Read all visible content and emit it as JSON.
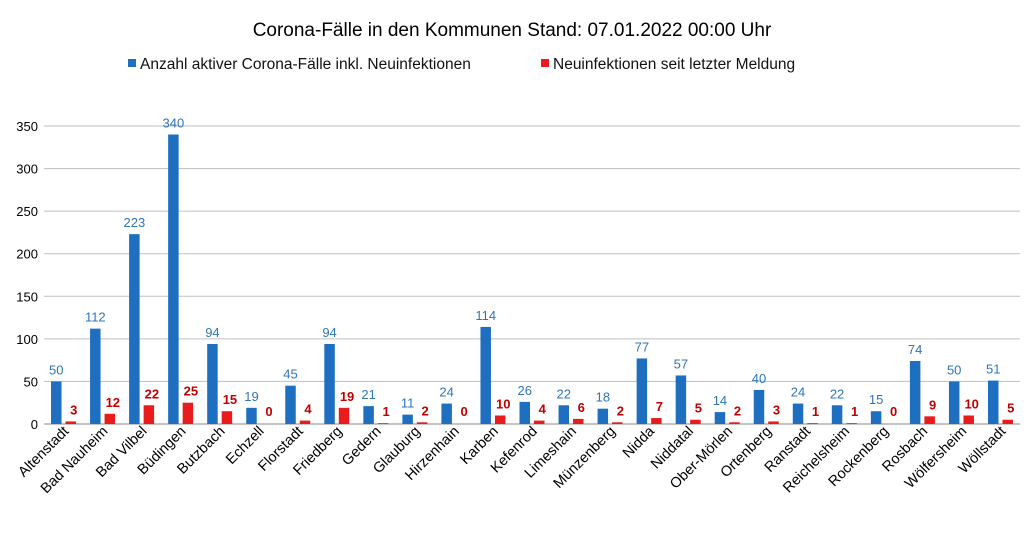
{
  "chart_data": {
    "type": "bar",
    "title": "Corona-Fälle in den Kommunen Stand: 07.01.2022 00:00 Uhr",
    "xlabel": "",
    "ylabel": "",
    "ylim": [
      0,
      350
    ],
    "yticks": [
      0,
      50,
      100,
      150,
      200,
      250,
      300,
      350
    ],
    "yticks_labels": [
      "0",
      "50",
      "100",
      "150",
      "200",
      "250",
      "300",
      "350"
    ],
    "grid": true,
    "legend_position": "top",
    "categories": [
      "Altenstadt",
      "Bad Nauheim",
      "Bad Vilbel",
      "Büdingen",
      "Butzbach",
      "Echzell",
      "Florstadt",
      "Friedberg",
      "Gedern",
      "Glauburg",
      "Hirzenhain",
      "Karben",
      "Kefenrod",
      "Limeshain",
      "Münzenberg",
      "Nidda",
      "Niddatal",
      "Ober-Mörlen",
      "Ortenberg",
      "Ranstadt",
      "Reichelsheim",
      "Rockenberg",
      "Rosbach",
      "Wölfersheim",
      "Wöllstadt"
    ],
    "series": [
      {
        "name": "Anzahl aktiver Corona-Fälle inkl. Neuinfektionen",
        "color": "#1f6fc0",
        "label_color": "#2e75b6",
        "values": [
          50,
          112,
          223,
          340,
          94,
          19,
          45,
          94,
          21,
          11,
          24,
          114,
          26,
          22,
          18,
          77,
          57,
          14,
          40,
          24,
          22,
          15,
          74,
          50,
          51
        ]
      },
      {
        "name": "Neuinfektionen seit letzter Meldung",
        "color": "#e81c1c",
        "label_color": "#c00000",
        "values": [
          3,
          12,
          22,
          25,
          15,
          0,
          4,
          19,
          1,
          2,
          0,
          10,
          4,
          6,
          2,
          7,
          5,
          2,
          3,
          1,
          1,
          0,
          9,
          10,
          5
        ]
      }
    ]
  }
}
